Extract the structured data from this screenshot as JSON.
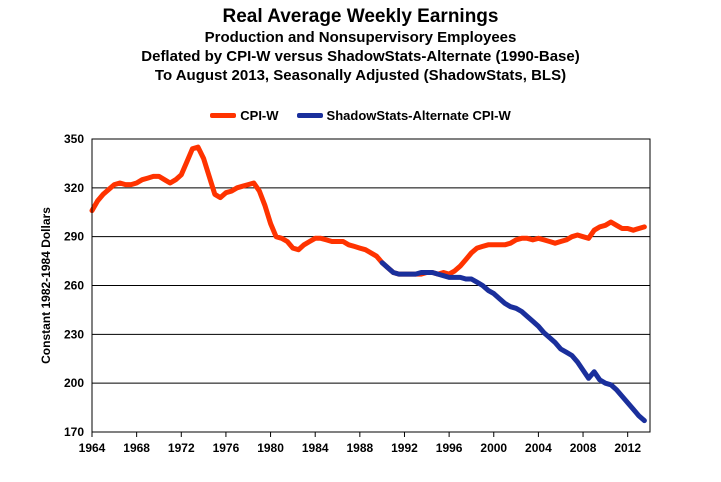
{
  "chart_data": {
    "type": "line",
    "title": "Real Average Weekly Earnings",
    "subtitle_lines": [
      "Production and Nonsupervisory Employees",
      "Deflated by CPI-W versus ShadowStats-Alternate (1990-Base)",
      "To August 2013, Seasonally Adjusted (ShadowStats, BLS)"
    ],
    "ylabel": "Constant 1982-1984 Dollars",
    "xlabel": "",
    "xlim": [
      1964,
      2014
    ],
    "ylim": [
      170,
      350
    ],
    "x_ticks": [
      "1964",
      "1968",
      "1972",
      "1976",
      "1980",
      "1984",
      "1988",
      "1992",
      "1996",
      "2000",
      "2004",
      "2008",
      "2012"
    ],
    "y_ticks": [
      "170",
      "200",
      "230",
      "260",
      "290",
      "320",
      "350"
    ],
    "grid": "horizontal",
    "legend_position": "top-center",
    "series": [
      {
        "name": "CPI-W",
        "color": "#ff3300",
        "points": [
          [
            1964.0,
            306
          ],
          [
            1964.5,
            312
          ],
          [
            1965.0,
            316
          ],
          [
            1965.5,
            319
          ],
          [
            1966.0,
            322
          ],
          [
            1966.5,
            323
          ],
          [
            1967.0,
            322
          ],
          [
            1967.5,
            322
          ],
          [
            1968.0,
            323
          ],
          [
            1968.5,
            325
          ],
          [
            1969.0,
            326
          ],
          [
            1969.5,
            327
          ],
          [
            1970.0,
            327
          ],
          [
            1970.5,
            325
          ],
          [
            1971.0,
            323
          ],
          [
            1971.5,
            325
          ],
          [
            1972.0,
            328
          ],
          [
            1972.5,
            336
          ],
          [
            1973.0,
            344
          ],
          [
            1973.5,
            345
          ],
          [
            1974.0,
            338
          ],
          [
            1974.5,
            327
          ],
          [
            1975.0,
            316
          ],
          [
            1975.5,
            314
          ],
          [
            1976.0,
            317
          ],
          [
            1976.5,
            318
          ],
          [
            1977.0,
            320
          ],
          [
            1977.5,
            321
          ],
          [
            1978.0,
            322
          ],
          [
            1978.5,
            323
          ],
          [
            1979.0,
            318
          ],
          [
            1979.5,
            309
          ],
          [
            1980.0,
            298
          ],
          [
            1980.5,
            290
          ],
          [
            1981.0,
            289
          ],
          [
            1981.5,
            287
          ],
          [
            1982.0,
            283
          ],
          [
            1982.5,
            282
          ],
          [
            1983.0,
            285
          ],
          [
            1983.5,
            287
          ],
          [
            1984.0,
            289
          ],
          [
            1984.5,
            289
          ],
          [
            1985.0,
            288
          ],
          [
            1985.5,
            287
          ],
          [
            1986.0,
            287
          ],
          [
            1986.5,
            287
          ],
          [
            1987.0,
            285
          ],
          [
            1987.5,
            284
          ],
          [
            1988.0,
            283
          ],
          [
            1988.5,
            282
          ],
          [
            1989.0,
            280
          ],
          [
            1989.5,
            278
          ],
          [
            1990.0,
            274
          ],
          [
            1990.5,
            271
          ],
          [
            1991.0,
            268
          ],
          [
            1991.5,
            267
          ],
          [
            1992.0,
            267
          ],
          [
            1992.5,
            267
          ],
          [
            1993.0,
            267
          ],
          [
            1993.5,
            267
          ],
          [
            1994.0,
            268
          ],
          [
            1994.5,
            268
          ],
          [
            1995.0,
            267
          ],
          [
            1995.5,
            268
          ],
          [
            1996.0,
            267
          ],
          [
            1996.5,
            269
          ],
          [
            1997.0,
            272
          ],
          [
            1997.5,
            276
          ],
          [
            1998.0,
            280
          ],
          [
            1998.5,
            283
          ],
          [
            1999.0,
            284
          ],
          [
            1999.5,
            285
          ],
          [
            2000.0,
            285
          ],
          [
            2000.5,
            285
          ],
          [
            2001.0,
            285
          ],
          [
            2001.5,
            286
          ],
          [
            2002.0,
            288
          ],
          [
            2002.5,
            289
          ],
          [
            2003.0,
            289
          ],
          [
            2003.5,
            288
          ],
          [
            2004.0,
            289
          ],
          [
            2004.5,
            288
          ],
          [
            2005.0,
            287
          ],
          [
            2005.5,
            286
          ],
          [
            2006.0,
            287
          ],
          [
            2006.5,
            288
          ],
          [
            2007.0,
            290
          ],
          [
            2007.5,
            291
          ],
          [
            2008.0,
            290
          ],
          [
            2008.5,
            289
          ],
          [
            2009.0,
            294
          ],
          [
            2009.5,
            296
          ],
          [
            2010.0,
            297
          ],
          [
            2010.5,
            299
          ],
          [
            2011.0,
            297
          ],
          [
            2011.5,
            295
          ],
          [
            2012.0,
            295
          ],
          [
            2012.5,
            294
          ],
          [
            2013.0,
            295
          ],
          [
            2013.5,
            296
          ]
        ]
      },
      {
        "name": "ShadowStats-Alternate CPI-W",
        "color": "#1a2f9c",
        "points": [
          [
            1990.0,
            274
          ],
          [
            1990.5,
            271
          ],
          [
            1991.0,
            268
          ],
          [
            1991.5,
            267
          ],
          [
            1992.0,
            267
          ],
          [
            1992.5,
            267
          ],
          [
            1993.0,
            267
          ],
          [
            1993.5,
            268
          ],
          [
            1994.0,
            268
          ],
          [
            1994.5,
            268
          ],
          [
            1995.0,
            267
          ],
          [
            1995.5,
            266
          ],
          [
            1996.0,
            265
          ],
          [
            1996.5,
            265
          ],
          [
            1997.0,
            265
          ],
          [
            1997.5,
            264
          ],
          [
            1998.0,
            264
          ],
          [
            1998.5,
            262
          ],
          [
            1999.0,
            260
          ],
          [
            1999.5,
            257
          ],
          [
            2000.0,
            255
          ],
          [
            2000.5,
            252
          ],
          [
            2001.0,
            249
          ],
          [
            2001.5,
            247
          ],
          [
            2002.0,
            246
          ],
          [
            2002.5,
            244
          ],
          [
            2003.0,
            241
          ],
          [
            2003.5,
            238
          ],
          [
            2004.0,
            235
          ],
          [
            2004.5,
            231
          ],
          [
            2005.0,
            228
          ],
          [
            2005.5,
            225
          ],
          [
            2006.0,
            221
          ],
          [
            2006.5,
            219
          ],
          [
            2007.0,
            217
          ],
          [
            2007.5,
            213
          ],
          [
            2008.0,
            208
          ],
          [
            2008.5,
            203
          ],
          [
            2009.0,
            207
          ],
          [
            2009.5,
            202
          ],
          [
            2010.0,
            200
          ],
          [
            2010.5,
            199
          ],
          [
            2011.0,
            196
          ],
          [
            2011.5,
            192
          ],
          [
            2012.0,
            188
          ],
          [
            2012.5,
            184
          ],
          [
            2013.0,
            180
          ],
          [
            2013.5,
            177
          ]
        ]
      }
    ]
  }
}
